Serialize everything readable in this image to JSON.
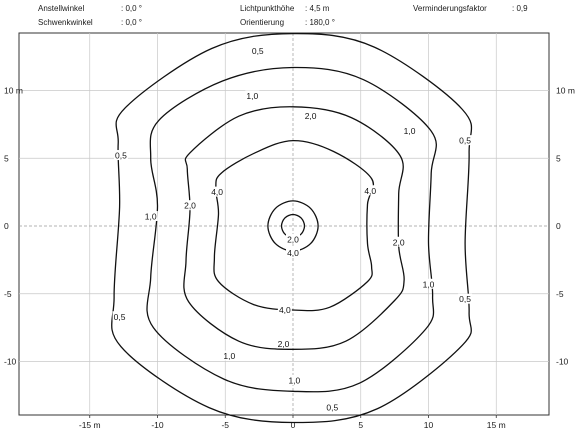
{
  "header": {
    "anstellwinkel_label": "Anstellwinkel",
    "anstellwinkel_value": ": 0,0 °",
    "schwenkwinkel_label": "Schwenkwinkel",
    "schwenkwinkel_value": ": 0,0 °",
    "lichtpunkthoehe_label": "Lichtpunkthöhe",
    "lichtpunkthoehe_value": ":    4,5 m",
    "orientierung_label": "Orientierung",
    "orientierung_value": ":    180,0 °",
    "verminderungsfaktor_label": "Verminderungsfaktor",
    "verminderungsfaktor_value": ":  0,9"
  },
  "chart_data": {
    "type": "isolux-contour",
    "xlim": [
      -20,
      20
    ],
    "ylim": [
      -14,
      14
    ],
    "x_ticks": [
      {
        "v": -15,
        "label": "-15 m"
      },
      {
        "v": -10,
        "label": "-10"
      },
      {
        "v": -5,
        "label": "-5"
      },
      {
        "v": 0,
        "label": "0"
      },
      {
        "v": 5,
        "label": "5"
      },
      {
        "v": 10,
        "label": "10"
      },
      {
        "v": 15,
        "label": "15 m"
      }
    ],
    "y_ticks": [
      {
        "v": 10,
        "label": "10 m"
      },
      {
        "v": 5,
        "label": "5"
      },
      {
        "v": 0,
        "label": "0"
      },
      {
        "v": -5,
        "label": "-5"
      },
      {
        "v": -10,
        "label": "-10"
      }
    ],
    "grid": true,
    "contours": [
      {
        "level": "0,5",
        "points": [
          [
            0,
            14.2
          ],
          [
            6.0,
            13.2
          ],
          [
            12.5,
            8.6
          ],
          [
            13.0,
            5.4
          ],
          [
            12.7,
            -1.3
          ],
          [
            13.0,
            -6.4
          ],
          [
            12.5,
            -8.8
          ],
          [
            6.2,
            -13.5
          ],
          [
            0,
            -14.5
          ],
          [
            -6.2,
            -13.4
          ],
          [
            -12.7,
            -8.9
          ],
          [
            -13.2,
            -5.2
          ],
          [
            -12.8,
            1.4
          ],
          [
            -12.9,
            6.1
          ],
          [
            -12.4,
            8.7
          ],
          [
            -6.0,
            13.1
          ]
        ]
      },
      {
        "level": "1,0",
        "points": [
          [
            0,
            11.7
          ],
          [
            5.2,
            10.8
          ],
          [
            10.2,
            7.0
          ],
          [
            10.2,
            3.9
          ],
          [
            10.0,
            -1.2
          ],
          [
            10.3,
            -5.2
          ],
          [
            9.8,
            -7.6
          ],
          [
            4.9,
            -11.6
          ],
          [
            0,
            -12.2
          ],
          [
            -5.1,
            -11.3
          ],
          [
            -10.3,
            -7.5
          ],
          [
            -10.5,
            -3.8
          ],
          [
            -10.0,
            1.5
          ],
          [
            -10.5,
            5.0
          ],
          [
            -9.9,
            7.8
          ],
          [
            -5.2,
            10.7
          ]
        ]
      },
      {
        "level": "2,0",
        "points": [
          [
            0,
            8.8
          ],
          [
            4.3,
            8.0
          ],
          [
            7.9,
            5.2
          ],
          [
            7.8,
            2.4
          ],
          [
            7.8,
            -1.5
          ],
          [
            8.2,
            -4.0
          ],
          [
            7.5,
            -5.5
          ],
          [
            3.9,
            -8.5
          ],
          [
            0,
            -9.1
          ],
          [
            -4.0,
            -8.5
          ],
          [
            -7.7,
            -5.6
          ],
          [
            -7.9,
            -2.6
          ],
          [
            -7.6,
            1.2
          ],
          [
            -7.8,
            4.2
          ],
          [
            -7.6,
            5.4
          ],
          [
            -4.0,
            8.1
          ]
        ]
      },
      {
        "level": "4,0",
        "points": [
          [
            0,
            6.3
          ],
          [
            3.0,
            5.5
          ],
          [
            5.8,
            3.5
          ],
          [
            5.5,
            1.6
          ],
          [
            5.5,
            -1.3
          ],
          [
            5.8,
            -3.0
          ],
          [
            5.5,
            -4.1
          ],
          [
            2.7,
            -6.0
          ],
          [
            0,
            -6.2
          ],
          [
            -2.9,
            -5.8
          ],
          [
            -5.5,
            -4.1
          ],
          [
            -5.8,
            -2.3
          ],
          [
            -5.5,
            0.9
          ],
          [
            -5.7,
            2.8
          ],
          [
            -5.3,
            3.9
          ],
          [
            -2.8,
            5.4
          ]
        ]
      },
      {
        "level": "4,0",
        "points": [
          [
            0,
            0.85
          ],
          [
            0.6,
            0.6
          ],
          [
            0.85,
            0
          ],
          [
            0.6,
            -0.6
          ],
          [
            0,
            -0.85
          ],
          [
            -0.6,
            -0.6
          ],
          [
            -0.85,
            0
          ],
          [
            -0.6,
            0.6
          ]
        ]
      },
      {
        "level": "2,0",
        "points": [
          [
            0,
            1.85
          ],
          [
            1.3,
            1.3
          ],
          [
            1.85,
            0
          ],
          [
            1.3,
            -1.3
          ],
          [
            0,
            -1.85
          ],
          [
            -1.3,
            -1.3
          ],
          [
            -1.85,
            0
          ],
          [
            -1.3,
            1.3
          ]
        ]
      }
    ],
    "level_labels": [
      {
        "text": "0,5",
        "x": -2.6,
        "y": 12.9
      },
      {
        "text": "0,5",
        "x": -12.7,
        "y": 5.2
      },
      {
        "text": "0,5",
        "x": 12.7,
        "y": 6.3
      },
      {
        "text": "0,5",
        "x": 12.7,
        "y": -5.4
      },
      {
        "text": "0,5",
        "x": -12.8,
        "y": -6.7
      },
      {
        "text": "0,5",
        "x": 2.9,
        "y": -13.4
      },
      {
        "text": "1,0",
        "x": -3.0,
        "y": 9.6
      },
      {
        "text": "1,0",
        "x": 8.6,
        "y": 7.0
      },
      {
        "text": "1,0",
        "x": -10.5,
        "y": 0.7
      },
      {
        "text": "1,0",
        "x": 10.0,
        "y": -4.3
      },
      {
        "text": "1,0",
        "x": -4.7,
        "y": -9.6
      },
      {
        "text": "1,0",
        "x": 0.1,
        "y": -11.4
      },
      {
        "text": "2,0",
        "x": 1.3,
        "y": 8.1
      },
      {
        "text": "2,0",
        "x": -7.6,
        "y": 1.5
      },
      {
        "text": "2,0",
        "x": 7.8,
        "y": -1.2
      },
      {
        "text": "2,0",
        "x": -0.7,
        "y": -8.7
      },
      {
        "text": "4,0",
        "x": -5.6,
        "y": 2.5
      },
      {
        "text": "4,0",
        "x": 5.7,
        "y": 2.6
      },
      {
        "text": "4,0",
        "x": -0.6,
        "y": -6.2
      },
      {
        "text": "2,0",
        "x": 0.0,
        "y": -1.0
      },
      {
        "text": "4,0",
        "x": 0.0,
        "y": -2.0
      }
    ]
  }
}
